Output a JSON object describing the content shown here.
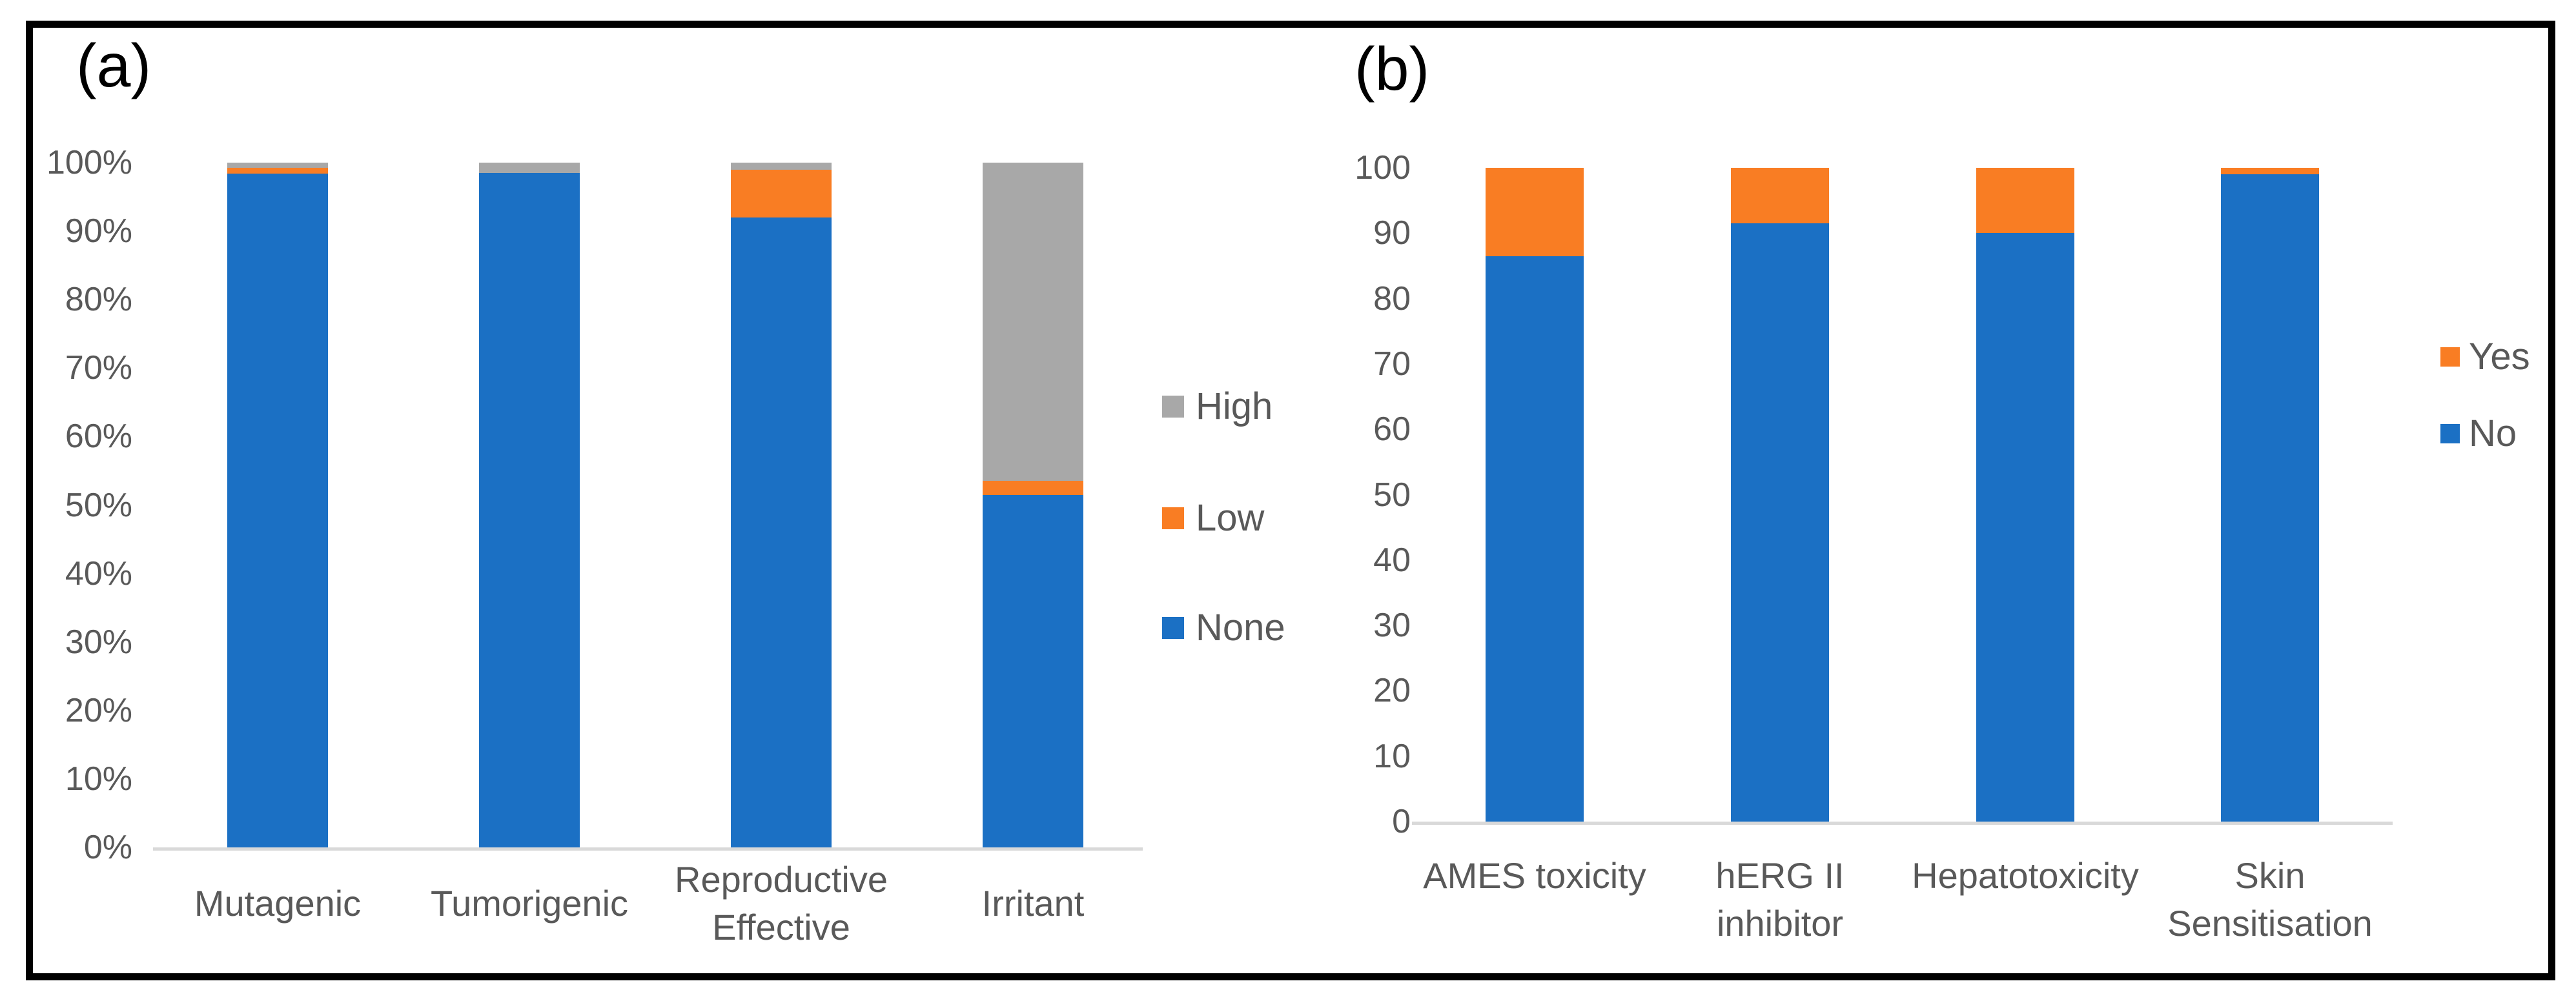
{
  "figure": {
    "panel_a_label": "(a)",
    "panel_b_label": "(b)"
  },
  "colors": {
    "blue_none_no": "#1B70C4",
    "orange_low_yes": "#F97D23",
    "gray_high": "#A8A8A8",
    "axis_line": "#D9D9D9",
    "tick_text": "#595959",
    "frame_border": "#000000",
    "panel_label_text": "#000000"
  },
  "chart_data": [
    {
      "panel_label": "(a)",
      "type": "bar",
      "stacked": true,
      "title": "",
      "xlabel": "",
      "ylabel": "",
      "ylim": [
        0,
        100
      ],
      "grid": false,
      "legend_position": "right",
      "categories": [
        "Mutagenic",
        "Tumorigenic",
        "Reproductive Effective",
        "Irritant"
      ],
      "category_lines": [
        [
          "Mutagenic"
        ],
        [
          "Tumorigenic"
        ],
        [
          "Reproductive",
          "Effective"
        ],
        [
          "Irritant"
        ]
      ],
      "series": [
        {
          "name": "None",
          "color": "#1B70C4",
          "values": [
            98.4,
            98.5,
            92,
            51.5
          ]
        },
        {
          "name": "Low",
          "color": "#F97D23",
          "values": [
            0.8,
            0,
            7,
            2
          ]
        },
        {
          "name": "High",
          "color": "#A8A8A8",
          "values": [
            0.8,
            1.5,
            1,
            46.5
          ]
        }
      ],
      "legend_entries": [
        "High",
        "Low",
        "None"
      ],
      "yticks": [
        "0%",
        "10%",
        "20%",
        "30%",
        "40%",
        "50%",
        "60%",
        "70%",
        "80%",
        "90%",
        "100%"
      ]
    },
    {
      "panel_label": "(b)",
      "type": "bar",
      "stacked": true,
      "title": "",
      "xlabel": "",
      "ylabel": "",
      "ylim": [
        0,
        100
      ],
      "grid": false,
      "legend_position": "right",
      "categories": [
        "AMES toxicity",
        "hERG II inhibitor",
        "Hepatotoxicity",
        "Skin Sensitisation"
      ],
      "category_lines": [
        [
          "AMES toxicity"
        ],
        [
          "hERG II",
          "inhibitor"
        ],
        [
          "Hepatotoxicity"
        ],
        [
          "Skin",
          "Sensitisation"
        ]
      ],
      "series": [
        {
          "name": "No",
          "color": "#1B70C4",
          "values": [
            86.5,
            91.5,
            90,
            99
          ]
        },
        {
          "name": "Yes",
          "color": "#F97D23",
          "values": [
            13.5,
            8.5,
            10,
            1
          ]
        }
      ],
      "legend_entries": [
        "Yes",
        "No"
      ],
      "yticks": [
        "0",
        "10",
        "20",
        "30",
        "40",
        "50",
        "60",
        "70",
        "80",
        "90",
        "100"
      ]
    }
  ]
}
